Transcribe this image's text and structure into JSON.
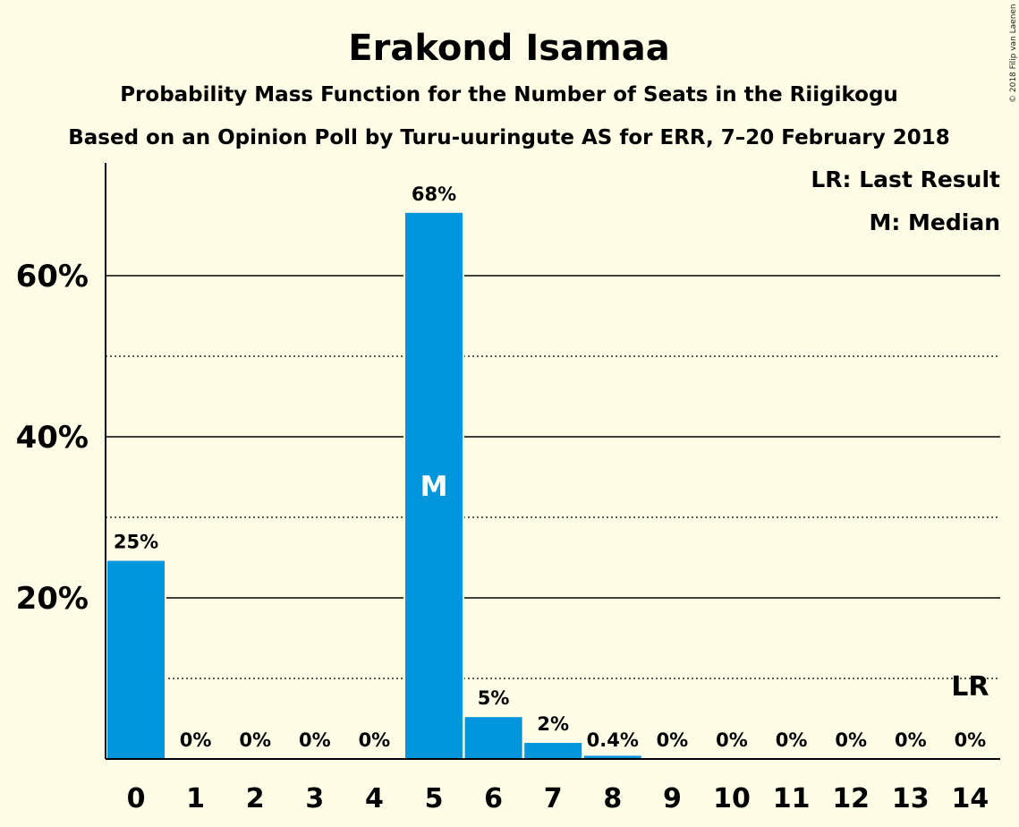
{
  "chart_data": {
    "type": "bar",
    "title": "Erakond Isamaa",
    "subtitle1": "Probability Mass Function for the Number of Seats in the Riigikogu",
    "subtitle2": "Based on an Opinion Poll by Turu-uuringute AS for ERR, 7–20 February 2018",
    "categories": [
      "0",
      "1",
      "2",
      "3",
      "4",
      "5",
      "6",
      "7",
      "8",
      "9",
      "10",
      "11",
      "12",
      "13",
      "14"
    ],
    "values": [
      24.6,
      0,
      0,
      0,
      0,
      67.8,
      5.2,
      2.0,
      0.4,
      0,
      0,
      0,
      0,
      0,
      0
    ],
    "value_labels": [
      "25%",
      "0%",
      "0%",
      "0%",
      "0%",
      "68%",
      "5%",
      "2%",
      "0.4%",
      "0%",
      "0%",
      "0%",
      "0%",
      "0%",
      "0%"
    ],
    "ylim": [
      0,
      74
    ],
    "yticks": [
      20,
      40,
      60
    ],
    "ytick_labels": [
      "20%",
      "40%",
      "60%"
    ],
    "minor_gridlines": [
      10,
      30,
      50
    ],
    "bar_color": "#0096DB",
    "median_index": 5,
    "median_mark": "M",
    "last_result_index": 14,
    "last_result_mark": "LR",
    "legend": [
      "LR: Last Result",
      "M: Median"
    ],
    "legend_position": "top-right",
    "copyright": "© 2018 Filip van Laenen"
  }
}
